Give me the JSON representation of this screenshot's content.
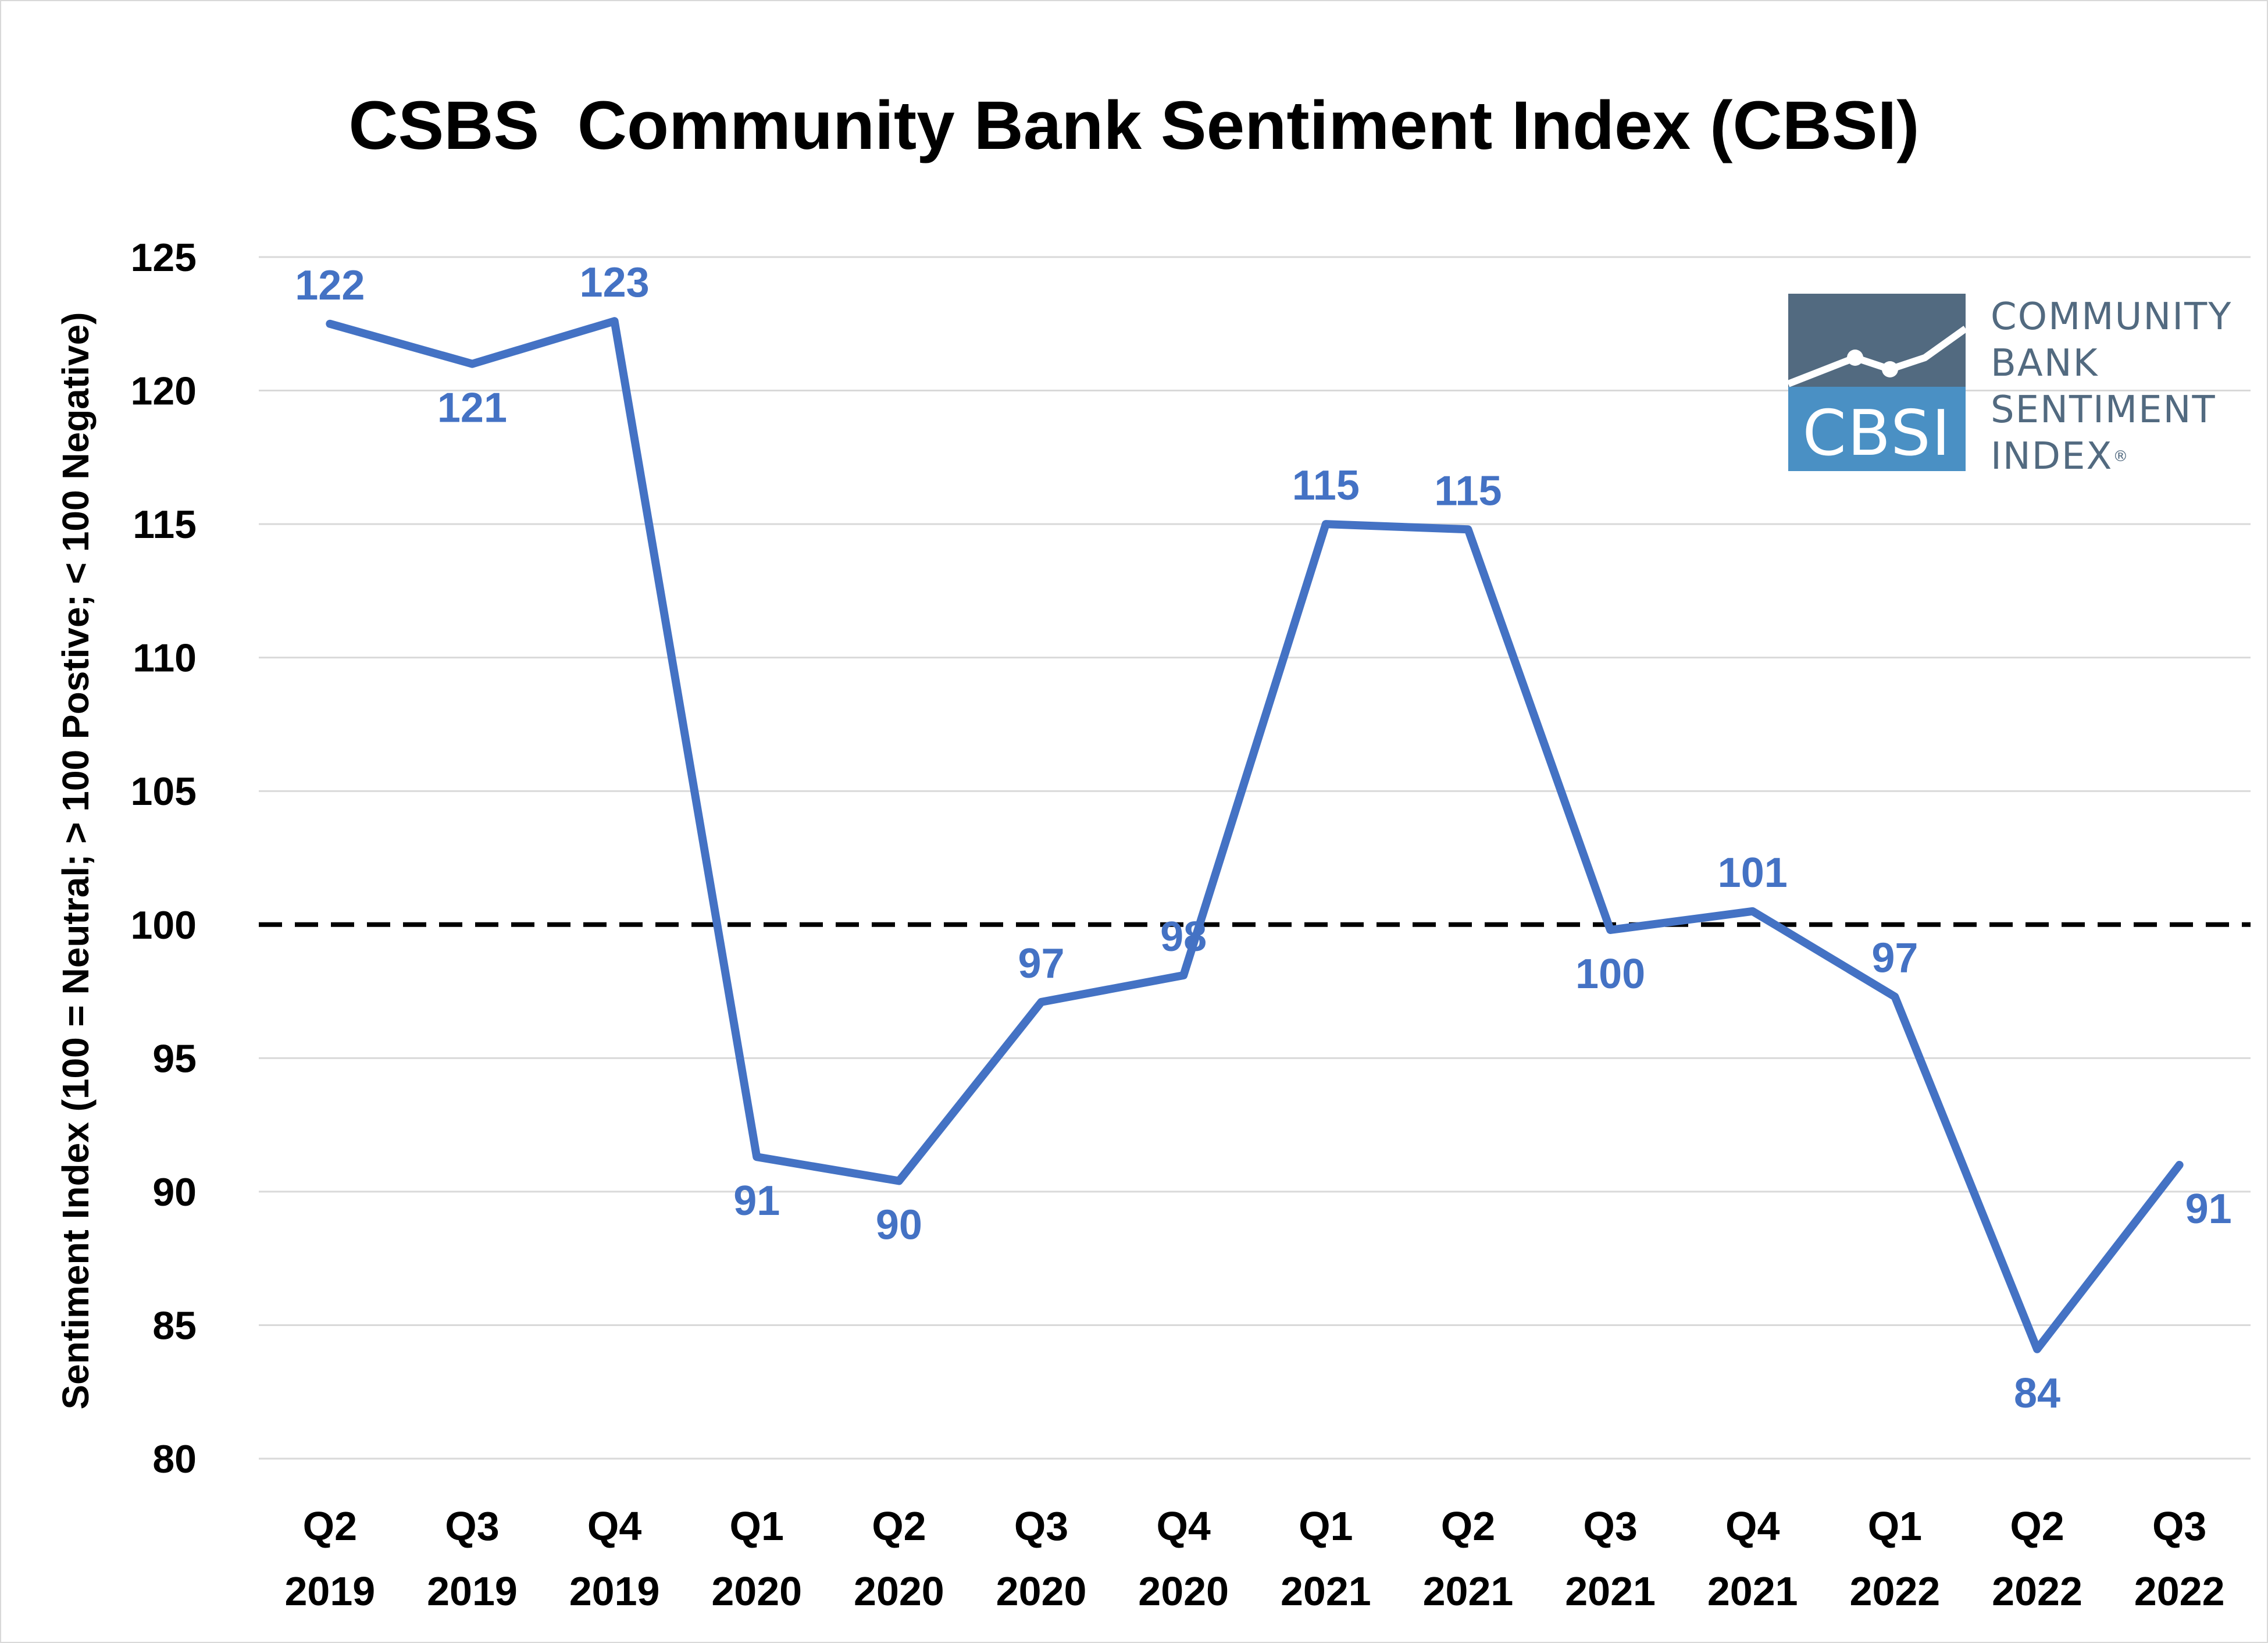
{
  "chart_data": {
    "type": "line",
    "title": "CSBS  Community Bank Sentiment Index (CBSI)",
    "ylabel": "Sentiment Index (100 = Neutral; > 100 Postive; < 100 Negative)",
    "xlabel": "",
    "categories": [
      [
        "Q2",
        "2019"
      ],
      [
        "Q3",
        "2019"
      ],
      [
        "Q4",
        "2019"
      ],
      [
        "Q1",
        "2020"
      ],
      [
        "Q2",
        "2020"
      ],
      [
        "Q3",
        "2020"
      ],
      [
        "Q4",
        "2020"
      ],
      [
        "Q1",
        "2021"
      ],
      [
        "Q2",
        "2021"
      ],
      [
        "Q3",
        "2021"
      ],
      [
        "Q4",
        "2021"
      ],
      [
        "Q1",
        "2022"
      ],
      [
        "Q2",
        "2022"
      ],
      [
        "Q3",
        "2022"
      ]
    ],
    "series": [
      {
        "values": [
          122.5,
          121.0,
          122.6,
          91.3,
          90.4,
          97.1,
          98.1,
          115.0,
          114.8,
          99.8,
          100.5,
          97.3,
          84.1,
          91.0
        ],
        "labels": [
          "122",
          "121",
          "123",
          "91",
          "90",
          "97",
          "98",
          "115",
          "115",
          "100",
          "101",
          "97",
          "84",
          "91"
        ],
        "color": "#4472c4"
      }
    ],
    "ylim": [
      80,
      125
    ],
    "yticks": [
      "80",
      "85",
      "90",
      "95",
      "100",
      "105",
      "110",
      "115",
      "120",
      "125"
    ],
    "reference_line": {
      "value": 100,
      "style": "dashed",
      "color": "#000000"
    },
    "grid": {
      "horizontal": true,
      "vertical": false,
      "color": "#d9d9d9"
    },
    "legend": "none"
  },
  "logo": {
    "abbreviation": "CBSI",
    "text_lines": [
      "COMMUNITY",
      "BANK",
      "SENTIMENT",
      "INDEX"
    ],
    "trademark": "®",
    "colors": {
      "dark": "#526a80",
      "light": "#4a90c4"
    }
  }
}
